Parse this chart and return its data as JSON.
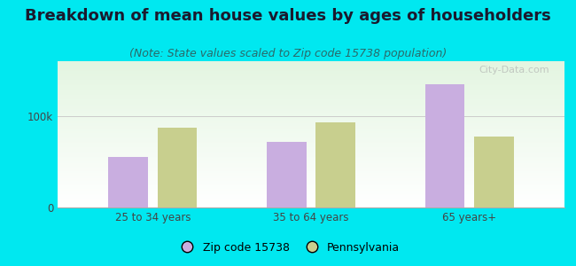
{
  "title": "Breakdown of mean house values by ages of householders",
  "subtitle": "(Note: State values scaled to Zip code 15738 population)",
  "categories": [
    "25 to 34 years",
    "35 to 64 years",
    "65 years+"
  ],
  "series": [
    {
      "label": "Zip code 15738",
      "values": [
        55000,
        72000,
        135000
      ],
      "color": "#c9aee0"
    },
    {
      "label": "Pennsylvania",
      "values": [
        87000,
        93000,
        78000
      ],
      "color": "#c8cf8e"
    }
  ],
  "ylim": [
    0,
    160000
  ],
  "yticks": [
    0,
    100000
  ],
  "ytick_labels": [
    "0",
    "100k"
  ],
  "bar_width": 0.25,
  "background_color": "#00e8f0",
  "watermark": "City-Data.com",
  "title_fontsize": 13,
  "subtitle_fontsize": 9,
  "legend_fontsize": 9,
  "axis_fontsize": 8.5
}
